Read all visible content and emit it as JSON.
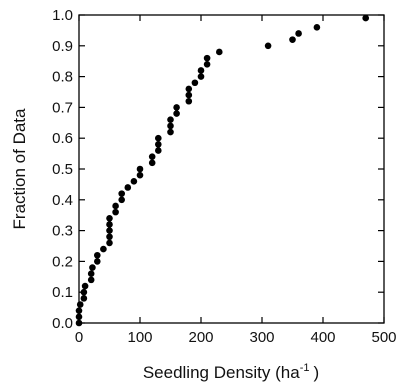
{
  "chart_data": {
    "type": "scatter",
    "title": "",
    "xlabel": "Seedling Density (ha",
    "xlabel_sup": "-1",
    "xlabel_close": ")",
    "ylabel": "Fraction of Data",
    "xlim": [
      0,
      500
    ],
    "ylim": [
      0,
      1.0
    ],
    "xticks": [
      0,
      100,
      200,
      300,
      400,
      500
    ],
    "xtick_labels": [
      "0",
      "100",
      "200",
      "300",
      "400",
      "500"
    ],
    "yticks": [
      0.0,
      0.1,
      0.2,
      0.3,
      0.4,
      0.5,
      0.6,
      0.7,
      0.8,
      0.9,
      1.0
    ],
    "ytick_labels": [
      "0.0",
      "0.1",
      "0.2",
      "0.3",
      "0.4",
      "0.5",
      "0.6",
      "0.7",
      "0.8",
      "0.9",
      "1.0"
    ],
    "grid": false,
    "series": [
      {
        "color": "#000000",
        "x": [
          0,
          0,
          0,
          2,
          8,
          8,
          10,
          20,
          20,
          22,
          30,
          30,
          40,
          50,
          50,
          50,
          50,
          50,
          60,
          60,
          70,
          70,
          80,
          90,
          100,
          100,
          120,
          120,
          130,
          130,
          130,
          150,
          150,
          150,
          160,
          160,
          180,
          180,
          180,
          190,
          200,
          200,
          210,
          210,
          230,
          310,
          350,
          360,
          390,
          470
        ],
        "y": [
          0.0,
          0.02,
          0.04,
          0.06,
          0.08,
          0.1,
          0.12,
          0.14,
          0.16,
          0.18,
          0.2,
          0.22,
          0.24,
          0.26,
          0.28,
          0.3,
          0.32,
          0.34,
          0.36,
          0.38,
          0.4,
          0.42,
          0.44,
          0.46,
          0.48,
          0.5,
          0.52,
          0.54,
          0.56,
          0.58,
          0.6,
          0.62,
          0.64,
          0.66,
          0.68,
          0.7,
          0.72,
          0.74,
          0.76,
          0.78,
          0.8,
          0.82,
          0.84,
          0.86,
          0.88,
          0.9,
          0.92,
          0.94,
          0.96,
          0.99
        ]
      }
    ]
  }
}
